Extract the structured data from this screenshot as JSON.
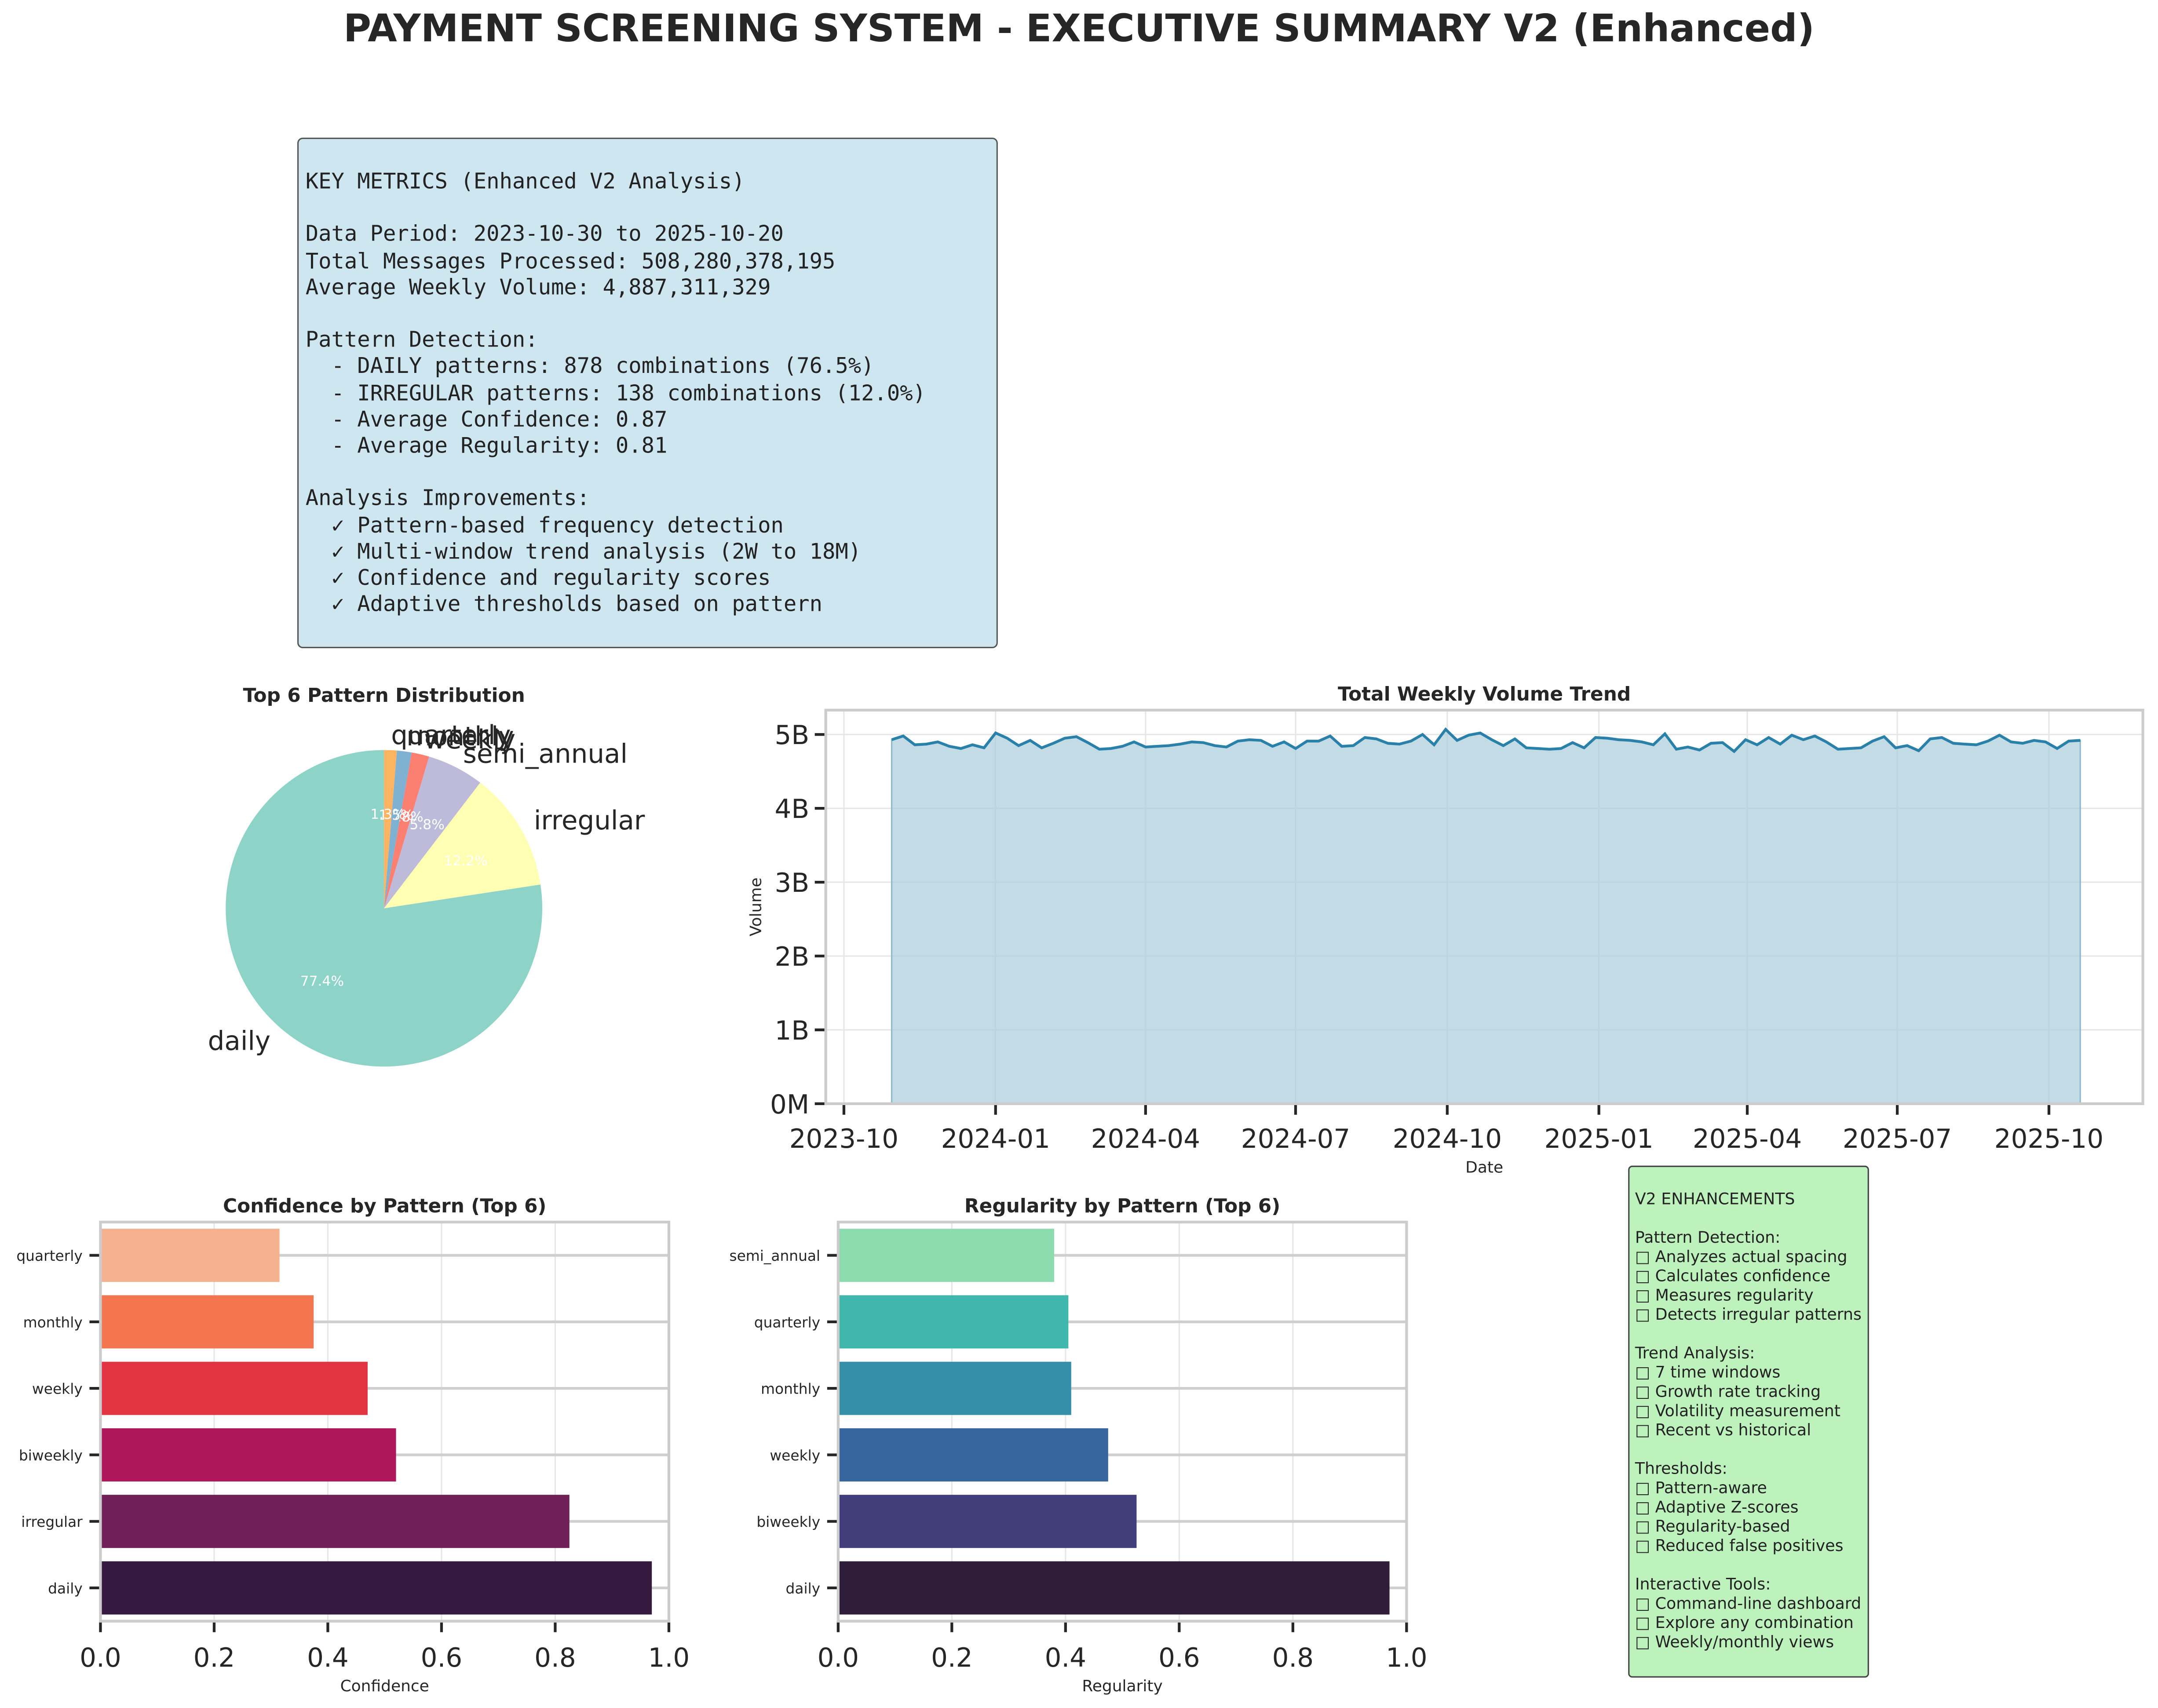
{
  "title": "PAYMENT SCREENING SYSTEM - EXECUTIVE SUMMARY V2 (Enhanced)",
  "metrics": {
    "lines": [
      "KEY METRICS (Enhanced V2 Analysis)",
      "",
      "Data Period: 2023-10-30 to 2025-10-20",
      "Total Messages Processed: 508,280,378,195",
      "Average Weekly Volume: 4,887,311,329",
      "",
      "Pattern Detection:",
      "  - DAILY patterns: 878 combinations (76.5%)",
      "  - IRREGULAR patterns: 138 combinations (12.0%)",
      "  - Average Confidence: 0.87",
      "  - Average Regularity: 0.81",
      "",
      "Analysis Improvements:",
      "  ✓ Pattern-based frequency detection",
      "  ✓ Multi-window trend analysis (2W to 18M)",
      "  ✓ Confidence and regularity scores",
      "  ✓ Adaptive thresholds based on pattern"
    ]
  },
  "enhancements": {
    "lines": [
      "V2 ENHANCEMENTS",
      "",
      "Pattern Detection:",
      "□ Analyzes actual spacing",
      "□ Calculates confidence",
      "□ Measures regularity",
      "□ Detects irregular patterns",
      "",
      "Trend Analysis:",
      "□ 7 time windows",
      "□ Growth rate tracking",
      "□ Volatility measurement",
      "□ Recent vs historical",
      "",
      "Thresholds:",
      "□ Pattern-aware",
      "□ Adaptive Z-scores",
      "□ Regularity-based",
      "□ Reduced false positives",
      "",
      "Interactive Tools:",
      "□ Command-line dashboard",
      "□ Explore any combination",
      "□ Weekly/monthly views"
    ]
  },
  "chart_data": [
    {
      "type": "pie",
      "title": "Top 6 Pattern Distribution",
      "labels": [
        "daily",
        "irregular",
        "semi_annual",
        "weekly",
        "monthly",
        "quarterly"
      ],
      "values": [
        77.4,
        12.2,
        5.8,
        1.8,
        1.5,
        1.3
      ],
      "pct_labels": [
        "77.4%",
        "12.2%",
        "5.8%",
        "1.8%",
        "1.5%",
        "1.3%"
      ],
      "colors": [
        "#8dd3c7",
        "#ffffb3",
        "#bebada",
        "#fb8072",
        "#80b1d3",
        "#fdb462"
      ]
    },
    {
      "type": "area",
      "title": "Total Weekly Volume Trend",
      "xlabel": "Date",
      "ylabel": "Volume",
      "x_start": "2023-10-30",
      "x_end": "2025-10-20",
      "x_step_days": 7,
      "x_ticks": [
        "2023-10",
        "2024-01",
        "2024-04",
        "2024-07",
        "2024-10",
        "2025-01",
        "2025-04",
        "2025-07",
        "2025-10"
      ],
      "y_ticks": [
        "0M",
        "1B",
        "2B",
        "3B",
        "4B",
        "5B"
      ],
      "ylim": [
        0,
        5330000000
      ],
      "values_billions": [
        4.93,
        4.98,
        4.86,
        4.87,
        4.9,
        4.84,
        4.81,
        4.86,
        4.82,
        5.02,
        4.95,
        4.85,
        4.92,
        4.82,
        4.88,
        4.95,
        4.97,
        4.89,
        4.8,
        4.81,
        4.84,
        4.9,
        4.83,
        4.84,
        4.85,
        4.87,
        4.9,
        4.89,
        4.85,
        4.83,
        4.91,
        4.93,
        4.92,
        4.84,
        4.9,
        4.81,
        4.91,
        4.91,
        4.98,
        4.84,
        4.85,
        4.96,
        4.94,
        4.88,
        4.87,
        4.91,
        5.0,
        4.86,
        5.07,
        4.92,
        4.99,
        5.02,
        4.93,
        4.85,
        4.94,
        4.82,
        4.81,
        4.8,
        4.81,
        4.89,
        4.82,
        4.96,
        4.95,
        4.93,
        4.92,
        4.9,
        4.86,
        5.01,
        4.8,
        4.83,
        4.79,
        4.88,
        4.89,
        4.77,
        4.93,
        4.86,
        4.96,
        4.87,
        4.99,
        4.93,
        4.98,
        4.9,
        4.8,
        4.81,
        4.82,
        4.91,
        4.97,
        4.82,
        4.85,
        4.78,
        4.94,
        4.96,
        4.88,
        4.87,
        4.86,
        4.91,
        4.99,
        4.9,
        4.88,
        4.92,
        4.9,
        4.81,
        4.91,
        4.92
      ],
      "line_color": "#2980a9",
      "fill_color": "#a8ccda"
    },
    {
      "type": "bar",
      "orientation": "horizontal",
      "title": "Confidence by Pattern (Top 6)",
      "xlabel": "Confidence",
      "categories": [
        "quarterly",
        "monthly",
        "weekly",
        "biweekly",
        "irregular",
        "daily"
      ],
      "values": [
        0.315,
        0.375,
        0.47,
        0.52,
        0.825,
        0.97
      ],
      "colors": [
        "#f5b190",
        "#f37651",
        "#e13342",
        "#ad1759",
        "#701f57",
        "#35193e"
      ],
      "xlim": [
        0,
        1
      ],
      "x_ticks": [
        "0.0",
        "0.2",
        "0.4",
        "0.6",
        "0.8",
        "1.0"
      ]
    },
    {
      "type": "bar",
      "orientation": "horizontal",
      "title": "Regularity by Pattern (Top 6)",
      "xlabel": "Regularity",
      "categories": [
        "semi_annual",
        "quarterly",
        "monthly",
        "weekly",
        "biweekly",
        "daily"
      ],
      "values": [
        0.38,
        0.405,
        0.41,
        0.475,
        0.525,
        0.97
      ],
      "colors": [
        "#8ddcb0",
        "#40b7ad",
        "#348fa7",
        "#37659e",
        "#413d7b",
        "#2e1e3b"
      ],
      "xlim": [
        0,
        1
      ],
      "x_ticks": [
        "0.0",
        "0.2",
        "0.4",
        "0.6",
        "0.8",
        "1.0"
      ]
    }
  ]
}
